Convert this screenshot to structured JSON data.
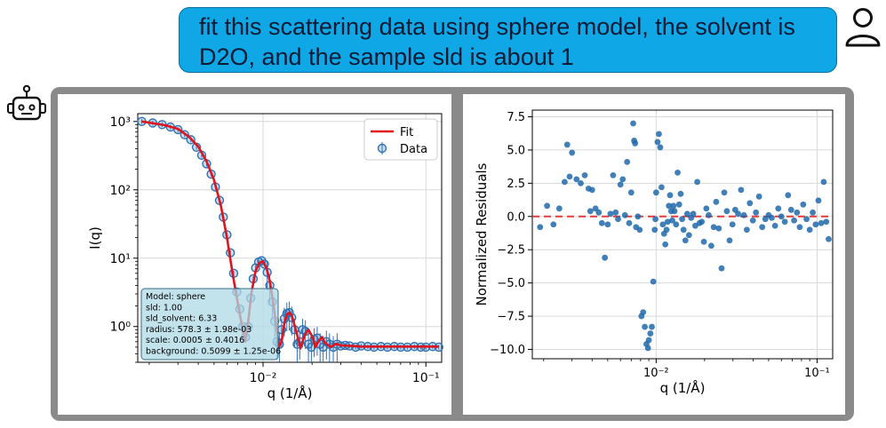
{
  "chat": {
    "user_message": "fit this scattering data using sphere model, the solvent is D2O, and the sample sld is about 1",
    "user_icon": "person-icon",
    "assistant_icon": "robot-icon"
  },
  "colors": {
    "bubble": "#0fa7e6",
    "panel": "#8a8a8a",
    "fit_line": "#e0141e",
    "data_points": "#2e72b3",
    "zero_line": "#e33a3a"
  },
  "chart_data": [
    {
      "type": "scatter",
      "title": "",
      "xlabel": "q (1/Å)",
      "ylabel": "I(q)",
      "xscale": "log",
      "yscale": "log",
      "xlim": [
        0.0017,
        0.125
      ],
      "ylim": [
        0.3,
        1300
      ],
      "x_ticks": [
        "10⁻²",
        "10⁻¹"
      ],
      "y_ticks": [
        "10⁰",
        "10¹",
        "10²",
        "10³"
      ],
      "legend": {
        "position": "top-right",
        "entries": [
          "Fit",
          "Data"
        ]
      },
      "grid": true,
      "series": [
        {
          "name": "Fit",
          "kind": "line",
          "x": [
            0.0018,
            0.002,
            0.0025,
            0.003,
            0.0035,
            0.004,
            0.0045,
            0.005,
            0.0055,
            0.006,
            0.0065,
            0.007,
            0.0075,
            0.00775,
            0.008,
            0.0085,
            0.009,
            0.0095,
            0.01,
            0.0105,
            0.011,
            0.0115,
            0.012,
            0.0125,
            0.013,
            0.0135,
            0.014,
            0.0145,
            0.015,
            0.016,
            0.017,
            0.018,
            0.019,
            0.02,
            0.021,
            0.022,
            0.023,
            0.024,
            0.026,
            0.028,
            0.03,
            0.035,
            0.04,
            0.05,
            0.06,
            0.08,
            0.1,
            0.12
          ],
          "y": [
            1000,
            960,
            880,
            780,
            600,
            430,
            260,
            140,
            60,
            20,
            6,
            2.2,
            0.9,
            0.6,
            0.9,
            3.2,
            6.5,
            8.6,
            9.0,
            7.2,
            4.6,
            2.4,
            1.1,
            0.5,
            0.6,
            1.1,
            1.5,
            1.6,
            1.45,
            0.85,
            0.48,
            0.75,
            0.9,
            0.72,
            0.5,
            0.62,
            0.7,
            0.58,
            0.5,
            0.56,
            0.53,
            0.52,
            0.51,
            0.51,
            0.51,
            0.51,
            0.51,
            0.51
          ]
        },
        {
          "name": "Data",
          "kind": "errorbar",
          "x": [
            0.0018,
            0.0021,
            0.0024,
            0.0027,
            0.003,
            0.0033,
            0.0036,
            0.0039,
            0.0042,
            0.0045,
            0.0048,
            0.0051,
            0.0054,
            0.0057,
            0.006,
            0.0063,
            0.0066,
            0.0069,
            0.0072,
            0.0075,
            0.0078,
            0.0081,
            0.0084,
            0.0087,
            0.009,
            0.0094,
            0.0098,
            0.0102,
            0.0106,
            0.011,
            0.0114,
            0.0118,
            0.0122,
            0.0126,
            0.013,
            0.0135,
            0.014,
            0.0145,
            0.015,
            0.0156,
            0.0162,
            0.0168,
            0.0175,
            0.0182,
            0.019,
            0.0198,
            0.0206,
            0.0215,
            0.0224,
            0.0234,
            0.0245,
            0.0256,
            0.027,
            0.0285,
            0.03,
            0.032,
            0.034,
            0.037,
            0.04,
            0.044,
            0.048,
            0.053,
            0.058,
            0.064,
            0.07,
            0.077,
            0.085,
            0.093,
            0.1,
            0.11,
            0.12
          ],
          "y": [
            1000,
            950,
            900,
            830,
            760,
            640,
            540,
            420,
            320,
            240,
            170,
            110,
            70,
            40,
            22,
            12,
            6,
            3.2,
            1.8,
            1.0,
            0.7,
            1.0,
            2.6,
            5,
            7.2,
            8.8,
            9.2,
            8.2,
            6.2,
            4.0,
            2.3,
            1.2,
            0.6,
            0.55,
            0.9,
            1.3,
            1.55,
            1.6,
            1.35,
            0.9,
            0.55,
            0.6,
            0.9,
            0.85,
            0.55,
            0.5,
            0.65,
            0.68,
            0.55,
            0.5,
            0.6,
            0.55,
            0.5,
            0.55,
            0.52,
            0.53,
            0.52,
            0.5,
            0.52,
            0.51,
            0.5,
            0.51,
            0.5,
            0.51,
            0.5,
            0.5,
            0.51,
            0.5,
            0.5,
            0.51,
            0.5
          ]
        }
      ],
      "annotation": [
        "Model: sphere",
        "sld: 1.00",
        "sld_solvent: 6.33",
        "radius: 578.3 ± 1.98e-03",
        "scale: 0.0005 ± 0.4016",
        "background: 0.5099 ± 1.25e-06"
      ]
    },
    {
      "type": "scatter",
      "title": "",
      "xlabel": "q (1/Å)",
      "ylabel": "Normalized Residuals",
      "xscale": "log",
      "xlim": [
        0.0017,
        0.125
      ],
      "ylim": [
        -10.7,
        8
      ],
      "x_ticks": [
        "10⁻²",
        "10⁻¹"
      ],
      "y_ticks": [
        "7.5",
        "5.0",
        "2.5",
        "0.0",
        "−2.5",
        "−5.0",
        "−7.5",
        "−10.0"
      ],
      "grid": true,
      "reference_line": 0,
      "x": [
        0.0019,
        0.0021,
        0.0023,
        0.0025,
        0.0027,
        0.0028,
        0.0029,
        0.003,
        0.0032,
        0.0034,
        0.0036,
        0.0038,
        0.0039,
        0.004,
        0.0042,
        0.0044,
        0.0046,
        0.0048,
        0.005,
        0.0052,
        0.0054,
        0.0056,
        0.0058,
        0.006,
        0.0062,
        0.0064,
        0.0066,
        0.0068,
        0.007,
        0.0072,
        0.0073,
        0.0074,
        0.0075,
        0.0077,
        0.0079,
        0.0081,
        0.0083,
        0.0085,
        0.0087,
        0.0089,
        0.009,
        0.0092,
        0.0094,
        0.0096,
        0.0098,
        0.0099,
        0.01,
        0.0102,
        0.0104,
        0.0106,
        0.0108,
        0.011,
        0.0112,
        0.0114,
        0.0116,
        0.0118,
        0.012,
        0.0122,
        0.0124,
        0.0126,
        0.0128,
        0.013,
        0.0133,
        0.0136,
        0.0139,
        0.0142,
        0.0145,
        0.0148,
        0.0152,
        0.0156,
        0.016,
        0.0165,
        0.017,
        0.0175,
        0.018,
        0.0186,
        0.0192,
        0.0198,
        0.0205,
        0.0212,
        0.022,
        0.0228,
        0.0236,
        0.0245,
        0.0255,
        0.0265,
        0.0275,
        0.0286,
        0.0298,
        0.031,
        0.0323,
        0.0337,
        0.0351,
        0.0366,
        0.0382,
        0.0399,
        0.0417,
        0.0436,
        0.0456,
        0.0477,
        0.05,
        0.0523,
        0.0548,
        0.0574,
        0.06,
        0.063,
        0.066,
        0.069,
        0.072,
        0.075,
        0.078,
        0.082,
        0.086,
        0.09,
        0.094,
        0.098,
        0.102,
        0.106,
        0.11,
        0.114,
        0.118
      ],
      "y": [
        -0.8,
        0.8,
        -0.6,
        0.6,
        2.6,
        5.4,
        3.0,
        4.8,
        2.8,
        2.5,
        3.1,
        2.1,
        0.4,
        2.0,
        0.6,
        0.3,
        -0.5,
        -3.1,
        -0.6,
        0.2,
        3.1,
        0.3,
        -0.2,
        2.4,
        2.8,
        0.1,
        4.1,
        -0.5,
        1.8,
        7.0,
        5.7,
        5.5,
        -0.8,
        0.0,
        -1.0,
        -7.5,
        -7.2,
        -8.3,
        -9.6,
        -9.9,
        -9.3,
        -8.8,
        -8.3,
        -4.9,
        -1.0,
        -0.2,
        1.8,
        5.6,
        6.2,
        5.2,
        2.2,
        -0.6,
        -1.3,
        -2.1,
        -1.0,
        -0.4,
        0.8,
        1.6,
        0.4,
        -0.3,
        0.8,
        0.4,
        -0.6,
        3.3,
        0.9,
        1.7,
        -0.2,
        -1.0,
        -1.8,
        0.2,
        -1.4,
        -0.1,
        0.2,
        -0.7,
        2.6,
        -0.5,
        -0.4,
        -1.9,
        0.6,
        0.1,
        -2.2,
        -0.8,
        1.1,
        -0.9,
        -3.9,
        1.8,
        0.4,
        -1.8,
        -0.6,
        0.5,
        0.2,
        2.0,
        0.1,
        -1.0,
        1.0,
        -0.3,
        0.3,
        1.5,
        -0.8,
        -0.2,
        0.1,
        -0.1,
        -0.7,
        0.6,
        0.0,
        -0.4,
        1.6,
        0.5,
        -0.3,
        0.3,
        -0.8,
        0.9,
        -0.2,
        -1.0,
        0.3,
        -0.6,
        1.2,
        -0.5,
        2.6,
        -0.4,
        -1.7
      ]
    }
  ]
}
